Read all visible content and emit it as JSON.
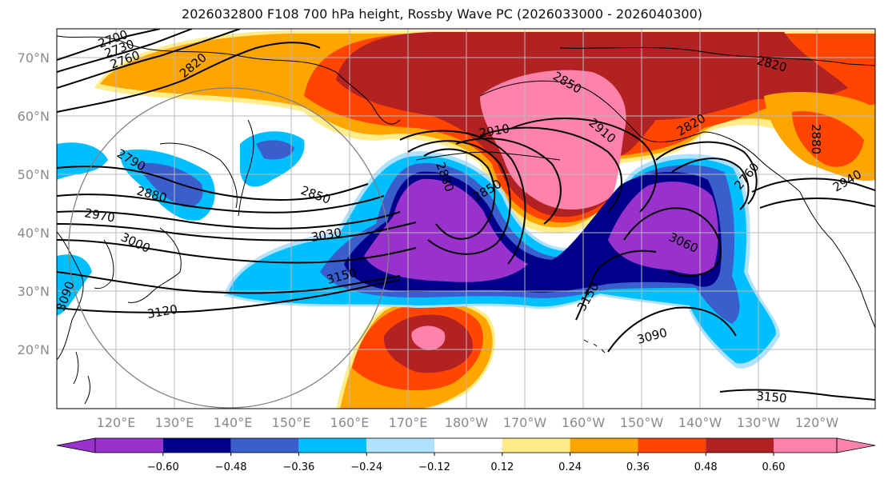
{
  "title": "2026032800 F108 700 hPa height, Rossby Wave PC (2026033000 - 2026040300)",
  "lat_ticks": [
    "70°N",
    "60°N",
    "50°N",
    "40°N",
    "30°N",
    "20°N"
  ],
  "lon_ticks": [
    "120°E",
    "130°E",
    "140°E",
    "150°E",
    "160°E",
    "170°E",
    "180°W",
    "170°W",
    "160°W",
    "150°W",
    "140°W",
    "130°W",
    "120°W"
  ],
  "contour_labels": [
    "2700",
    "2730",
    "2760",
    "2820",
    "2790",
    "2880",
    "2970",
    "3000",
    "3030",
    "3150",
    "3120",
    "2850",
    "2910",
    "2880",
    "2850",
    "2850",
    "2910",
    "2820",
    "2760",
    "2820",
    "2880",
    "2940",
    "3060",
    "3150",
    "3090",
    "3150",
    "3090"
  ],
  "colorbar": {
    "ticks": [
      "−0.60",
      "−0.48",
      "−0.36",
      "−0.24",
      "−0.12",
      "0.12",
      "0.24",
      "0.36",
      "0.48",
      "0.60"
    ],
    "colors": [
      "#9932cc",
      "#00008b",
      "#3a5fcd",
      "#00bfff",
      "#b0e2ff",
      "#ffffff",
      "#ffec8b",
      "#ffa500",
      "#ff4500",
      "#b22222",
      "#ff82ab"
    ]
  },
  "colors": {
    "purple": "#9932cc",
    "navy": "#00008b",
    "royal": "#3a5fcd",
    "sky": "#00bfff",
    "pale_blue": "#b0e2ff",
    "yellow": "#ffec8b",
    "orange": "#ffa500",
    "orangered": "#ff4500",
    "firebrick": "#b22222",
    "pink": "#ff82ab"
  }
}
